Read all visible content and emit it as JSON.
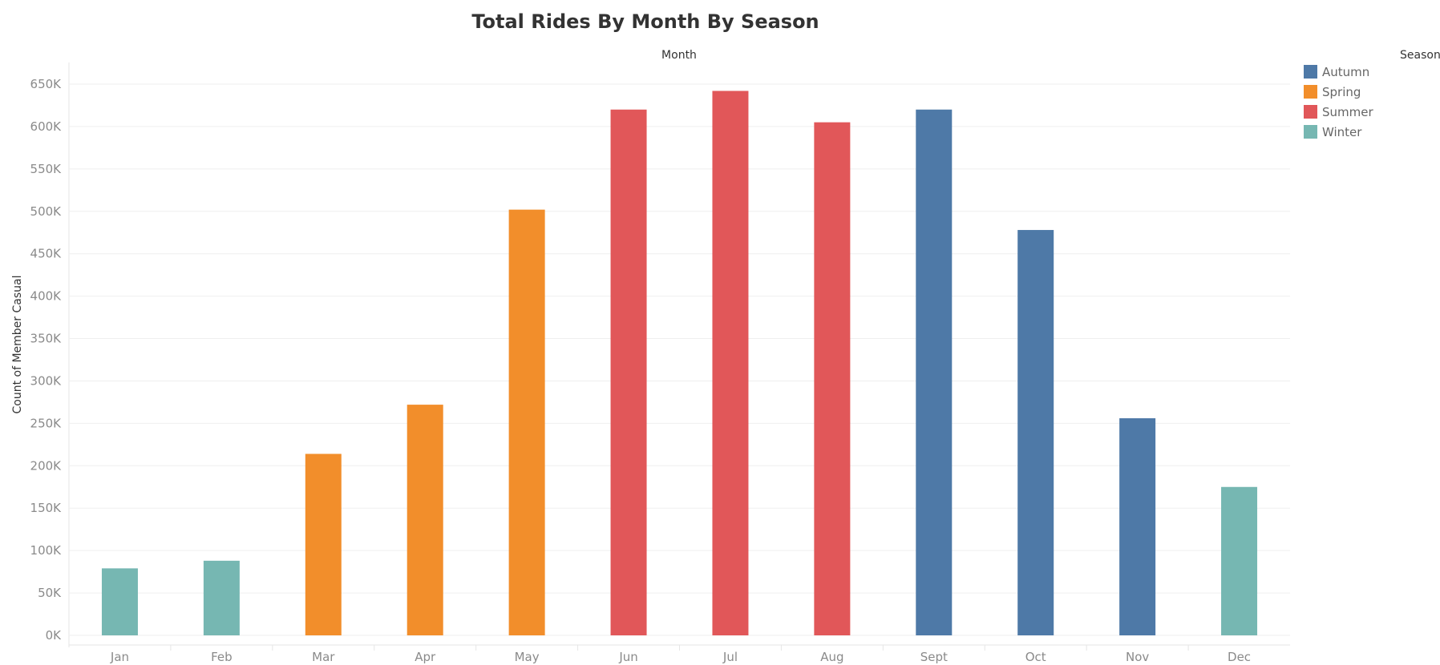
{
  "chart_data": {
    "type": "bar",
    "title": "Total Rides By Month By Season",
    "column_header": "Month",
    "ylabel": "Count of Member Casual",
    "xlabel": "",
    "ylim": [
      0,
      670000
    ],
    "grid": true,
    "yticks": [
      0,
      50000,
      100000,
      150000,
      200000,
      250000,
      300000,
      350000,
      400000,
      450000,
      500000,
      550000,
      600000,
      650000
    ],
    "ytick_labels": [
      "0K",
      "50K",
      "100K",
      "150K",
      "200K",
      "250K",
      "300K",
      "350K",
      "400K",
      "450K",
      "500K",
      "550K",
      "600K",
      "650K"
    ],
    "categories": [
      "Jan",
      "Feb",
      "Mar",
      "Apr",
      "May",
      "Jun",
      "Jul",
      "Aug",
      "Sept",
      "Oct",
      "Nov",
      "Dec"
    ],
    "values": [
      79000,
      88000,
      214000,
      272000,
      502000,
      620000,
      642000,
      605000,
      620000,
      478000,
      256000,
      175000
    ],
    "season": [
      "Winter",
      "Winter",
      "Spring",
      "Spring",
      "Spring",
      "Summer",
      "Summer",
      "Summer",
      "Autumn",
      "Autumn",
      "Autumn",
      "Winter"
    ],
    "legend": {
      "title": "Season",
      "placement": "top-right",
      "entries": [
        {
          "name": "Autumn",
          "color": "#4e79a7"
        },
        {
          "name": "Spring",
          "color": "#f28e2b"
        },
        {
          "name": "Summer",
          "color": "#e15759"
        },
        {
          "name": "Winter",
          "color": "#76b7b2"
        }
      ]
    }
  }
}
